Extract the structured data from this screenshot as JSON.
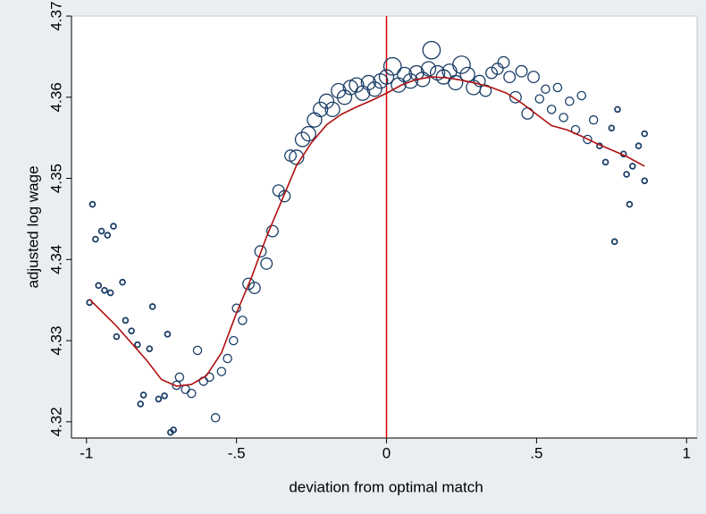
{
  "chart_data": {
    "type": "scatter",
    "x_label": "deviation from optimal match",
    "y_label": "adjusted log wage",
    "xlim": [
      -1.05,
      1.035
    ],
    "ylim": [
      4.318,
      4.37
    ],
    "xticks": [
      -1,
      {
        "value": -0.5,
        "label": "-.5"
      },
      0,
      {
        "value": 0.5,
        "label": ".5"
      },
      1
    ],
    "yticks": [
      4.32,
      4.33,
      4.34,
      4.35,
      4.36,
      4.37
    ],
    "grid": false,
    "reference_line": {
      "x": 0,
      "color": "#d40000"
    },
    "series": [
      {
        "type": "scatter",
        "color": "#1a3d66",
        "x": [
          -0.99,
          -0.98,
          -0.97,
          -0.95,
          -0.93,
          -0.91,
          -0.96,
          -0.94,
          -0.92,
          -0.88,
          -0.87,
          -0.9,
          -0.85,
          -0.83,
          -0.82,
          -0.81,
          -0.79,
          -0.78,
          -0.76,
          -0.74,
          -0.73,
          -0.72,
          -0.71,
          -0.7,
          -0.69,
          -0.67,
          -0.65,
          -0.63,
          -0.61,
          -0.59,
          -0.57,
          -0.55,
          -0.53,
          -0.51,
          -0.5,
          -0.48,
          -0.46,
          -0.44,
          -0.42,
          -0.4,
          -0.38,
          -0.36,
          -0.34,
          -0.32,
          -0.3,
          -0.28,
          -0.26,
          -0.24,
          -0.22,
          -0.2,
          -0.18,
          -0.16,
          -0.14,
          -0.12,
          -0.1,
          -0.08,
          -0.06,
          -0.04,
          -0.02,
          0.0,
          0.02,
          0.04,
          0.06,
          0.08,
          0.1,
          0.12,
          0.14,
          0.15,
          0.17,
          0.19,
          0.21,
          0.23,
          0.25,
          0.27,
          0.29,
          0.31,
          0.33,
          0.35,
          0.37,
          0.39,
          0.41,
          0.43,
          0.45,
          0.47,
          0.49,
          0.51,
          0.53,
          0.55,
          0.57,
          0.59,
          0.61,
          0.63,
          0.65,
          0.67,
          0.69,
          0.71,
          0.73,
          0.75,
          0.76,
          0.77,
          0.79,
          0.8,
          0.81,
          0.82,
          0.84,
          0.86,
          0.86
        ],
        "values": [
          4.3347,
          4.3468,
          4.3425,
          4.3435,
          4.343,
          4.3441,
          4.3368,
          4.3362,
          4.3359,
          4.3372,
          4.3325,
          4.3305,
          4.3312,
          4.3295,
          4.3222,
          4.3233,
          4.329,
          4.3342,
          4.3228,
          4.3232,
          4.3308,
          4.3187,
          4.319,
          4.3245,
          4.3255,
          4.324,
          4.3235,
          4.3288,
          4.325,
          4.3255,
          4.3205,
          4.3262,
          4.3278,
          4.33,
          4.334,
          4.3325,
          4.337,
          4.3365,
          4.341,
          4.3395,
          4.3435,
          4.3485,
          4.3478,
          4.3528,
          4.3526,
          4.3548,
          4.3555,
          4.3572,
          4.3585,
          4.3595,
          4.3585,
          4.3608,
          4.36,
          4.3612,
          4.3615,
          4.3605,
          4.3618,
          4.361,
          4.362,
          4.3625,
          4.3638,
          4.3615,
          4.3628,
          4.362,
          4.363,
          4.3622,
          4.3635,
          4.3658,
          4.363,
          4.3625,
          4.3632,
          4.3618,
          4.364,
          4.3628,
          4.3612,
          4.362,
          4.3608,
          4.363,
          4.3635,
          4.3643,
          4.3625,
          4.36,
          4.3632,
          4.358,
          4.3625,
          4.3598,
          4.361,
          4.3585,
          4.3612,
          4.3575,
          4.3595,
          4.356,
          4.3602,
          4.3548,
          4.3572,
          4.354,
          4.352,
          4.3562,
          4.3422,
          4.3585,
          4.353,
          4.3505,
          4.3468,
          4.3515,
          4.354,
          4.3555,
          4.3497
        ],
        "sizes": [
          1,
          1,
          1,
          1,
          1,
          1,
          1,
          1,
          1,
          1,
          1,
          1,
          1,
          1,
          1,
          1,
          1,
          1,
          1,
          1,
          1,
          1,
          1,
          2,
          2,
          2,
          2,
          2,
          2,
          2,
          2,
          2,
          2,
          2,
          2,
          2,
          3,
          3,
          3,
          3,
          3,
          3,
          3,
          3,
          4,
          4,
          4,
          4,
          4,
          4,
          4,
          4,
          4,
          4,
          4,
          4,
          4,
          4,
          4,
          4,
          5,
          4,
          4,
          4,
          4,
          4,
          4,
          5,
          4,
          4,
          4,
          4,
          5,
          4,
          4,
          3,
          3,
          3,
          3,
          3,
          3,
          3,
          3,
          3,
          3,
          2,
          2,
          2,
          2,
          2,
          2,
          2,
          2,
          2,
          2,
          1,
          1,
          1,
          1,
          1,
          1,
          1,
          1,
          1,
          1,
          1,
          1
        ]
      },
      {
        "type": "line",
        "color": "#b01010",
        "x": [
          -0.99,
          -0.9,
          -0.8,
          -0.75,
          -0.7,
          -0.65,
          -0.6,
          -0.55,
          -0.5,
          -0.45,
          -0.4,
          -0.35,
          -0.3,
          -0.25,
          -0.2,
          -0.15,
          -0.1,
          -0.05,
          0,
          0.05,
          0.1,
          0.15,
          0.2,
          0.25,
          0.3,
          0.35,
          0.4,
          0.45,
          0.5,
          0.55,
          0.6,
          0.65,
          0.7,
          0.75,
          0.8,
          0.86
        ],
        "values": [
          4.3351,
          4.3318,
          4.3276,
          4.3252,
          4.3244,
          4.3246,
          4.3257,
          4.3285,
          4.3334,
          4.3378,
          4.3428,
          4.3472,
          4.3516,
          4.3544,
          4.3566,
          4.3579,
          4.3588,
          4.3596,
          4.3605,
          4.3615,
          4.3622,
          4.3625,
          4.3624,
          4.3621,
          4.3617,
          4.3612,
          4.3605,
          4.3593,
          4.3579,
          4.3565,
          4.356,
          4.3552,
          4.3543,
          4.3535,
          4.3527,
          4.3515
        ]
      }
    ]
  }
}
